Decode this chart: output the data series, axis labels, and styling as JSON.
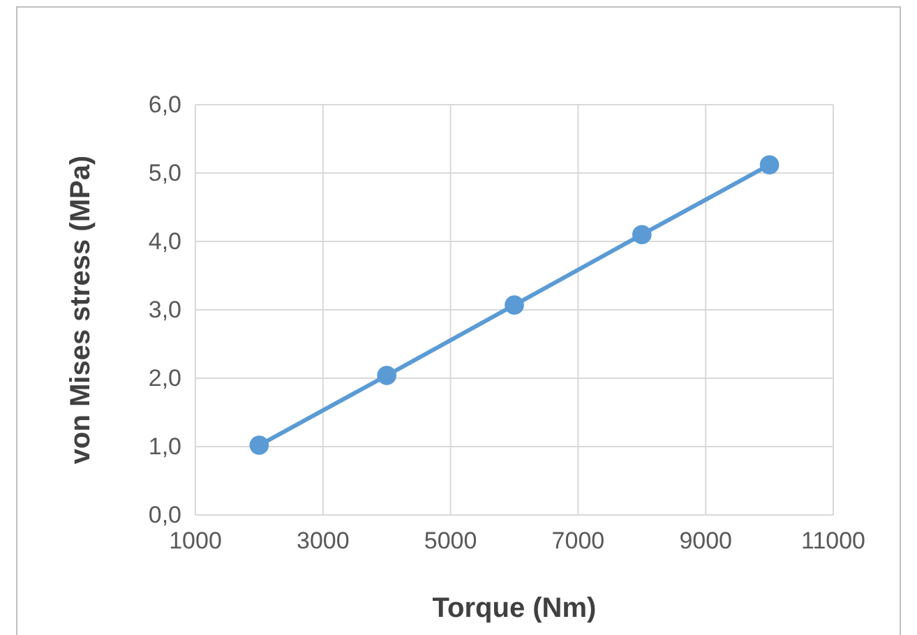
{
  "chart_data": {
    "type": "line",
    "xlabel": "Torque (Nm)",
    "ylabel": "von Mises stress (MPa)",
    "x": [
      2000,
      4000,
      6000,
      8000,
      10000
    ],
    "series": [
      {
        "color": "#5b9bd5",
        "values": [
          1.02,
          2.04,
          3.07,
          4.1,
          5.12
        ]
      }
    ],
    "xlim": [
      1000,
      11000
    ],
    "xticks": [
      1000,
      3000,
      5000,
      7000,
      9000,
      11000
    ],
    "ylim": [
      0,
      6
    ],
    "yticks": [
      {
        "value": 0,
        "label": "0,0"
      },
      {
        "value": 1,
        "label": "1,0"
      },
      {
        "value": 2,
        "label": "2,0"
      },
      {
        "value": 3,
        "label": "3,0"
      },
      {
        "value": 4,
        "label": "4,0"
      },
      {
        "value": 5,
        "label": "5,0"
      },
      {
        "value": 6,
        "label": "6,0"
      }
    ],
    "grid": true,
    "marker": "circle",
    "line_style": "solid"
  }
}
